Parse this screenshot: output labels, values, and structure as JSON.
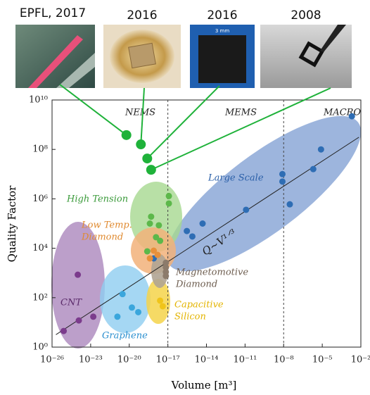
{
  "images": [
    {
      "caption": "EPFL, 2017"
    },
    {
      "caption": "2016"
    },
    {
      "caption": "2016",
      "scale_text": "3 mm"
    },
    {
      "caption": "2008"
    }
  ],
  "chart_data": {
    "type": "scatter",
    "x_label": "Volume [m³]",
    "y_label": "Quality Factor",
    "x_log": true,
    "y_log": true,
    "xlim": [
      1e-26,
      0.01
    ],
    "ylim": [
      1,
      10000000000.0
    ],
    "xticks": [
      {
        "value": 1e-26,
        "label": "10⁻²⁶"
      },
      {
        "value": 1e-23,
        "label": "10⁻²³"
      },
      {
        "value": 1e-20,
        "label": "10⁻²⁰"
      },
      {
        "value": 1e-17,
        "label": "10⁻¹⁷"
      },
      {
        "value": 1e-14,
        "label": "10⁻¹⁴"
      },
      {
        "value": 1e-11,
        "label": "10⁻¹¹"
      },
      {
        "value": 1e-08,
        "label": "10⁻⁸"
      },
      {
        "value": 1e-05,
        "label": "10⁻⁵"
      },
      {
        "value": 0.01,
        "label": "10⁻²"
      }
    ],
    "yticks": [
      {
        "value": 1,
        "label": "10⁰"
      },
      {
        "value": 100,
        "label": "10²"
      },
      {
        "value": 10000,
        "label": "10⁴"
      },
      {
        "value": 1000000,
        "label": "10⁶"
      },
      {
        "value": 100000000,
        "label": "10⁸"
      },
      {
        "value": 10000000000,
        "label": "10¹⁰"
      }
    ],
    "vlines": [
      1e-17,
      1e-08
    ],
    "region_labels": [
      {
        "lines": [
          "NEMS"
        ],
        "color": "#222"
      },
      {
        "lines": [
          "MEMS"
        ],
        "color": "#222"
      },
      {
        "lines": [
          "MACRO"
        ],
        "color": "#222"
      },
      {
        "lines": [
          "High Tension"
        ],
        "color": "#3a9a3a"
      },
      {
        "lines": [
          "Large Scale"
        ],
        "color": "#2a5fa8"
      },
      {
        "lines": [
          "Low Temp.",
          "Diamond"
        ],
        "color": "#e08a30"
      },
      {
        "lines": [
          "Magnetomotive",
          "Diamond"
        ],
        "color": "#6e5e50"
      },
      {
        "lines": [
          "Capacitive",
          "Silicon"
        ],
        "color": "#e3b400"
      },
      {
        "lines": [
          "CNT"
        ],
        "color": "#5a2a6a"
      },
      {
        "lines": [
          "Graphene"
        ],
        "color": "#2a8fcf"
      }
    ],
    "fit": {
      "label": "Q∼V¹ᐟ³",
      "x": [
        2e-26,
        0.007
      ],
      "values": [
        3.2,
        310000000
      ],
      "color": "#222"
    },
    "series": [
      {
        "color": "#1fb23a",
        "x": [
          6e-21,
          8e-20,
          2.5e-19,
          5e-19
        ],
        "values": [
          380000000,
          160000000,
          43000000,
          15000000
        ]
      },
      {
        "color": "#2e6db4",
        "x": [
          0.002,
          8e-06,
          2e-06,
          3e-08,
          8e-09,
          8e-09,
          1.2e-11,
          5e-15,
          3e-16,
          8e-16,
          8e-19
        ],
        "values": [
          2200000000,
          100000000,
          16000000,
          600000,
          5000000,
          10000000,
          360000,
          100000,
          50000,
          30000,
          3900
        ]
      },
      {
        "color": "#3aa6dc",
        "x": [
          3e-21,
          1.6e-20,
          5e-20,
          1.2e-21
        ],
        "values": [
          140,
          40,
          26,
          17
        ]
      },
      {
        "color": "#7b3b8c",
        "x": [
          1e-24,
          8e-26,
          1.2e-24,
          1.6e-23
        ],
        "values": [
          850,
          4.5,
          12,
          17
        ]
      },
      {
        "color": "#5cb84a",
        "x": [
          1.2e-17,
          1.2e-17,
          5e-19,
          4e-19,
          2e-18,
          1.2e-18,
          2.5e-19,
          2.5e-18
        ],
        "values": [
          1300000,
          650000,
          190000,
          100000,
          85000,
          28000,
          7500,
          20000
        ]
      },
      {
        "color": "#e8903a",
        "x": [
          8e-19,
          1.6e-18,
          4e-19
        ],
        "values": [
          8000,
          5400,
          3900
        ]
      },
      {
        "color": "#8c7b6b",
        "x": [
          7e-18,
          7e-18,
          7e-18,
          7e-18
        ],
        "values": [
          2600,
          1700,
          1100,
          760
        ]
      },
      {
        "color": "#f0c419",
        "x": [
          2.5e-18,
          4e-18
        ],
        "values": [
          76,
          45
        ]
      }
    ]
  }
}
